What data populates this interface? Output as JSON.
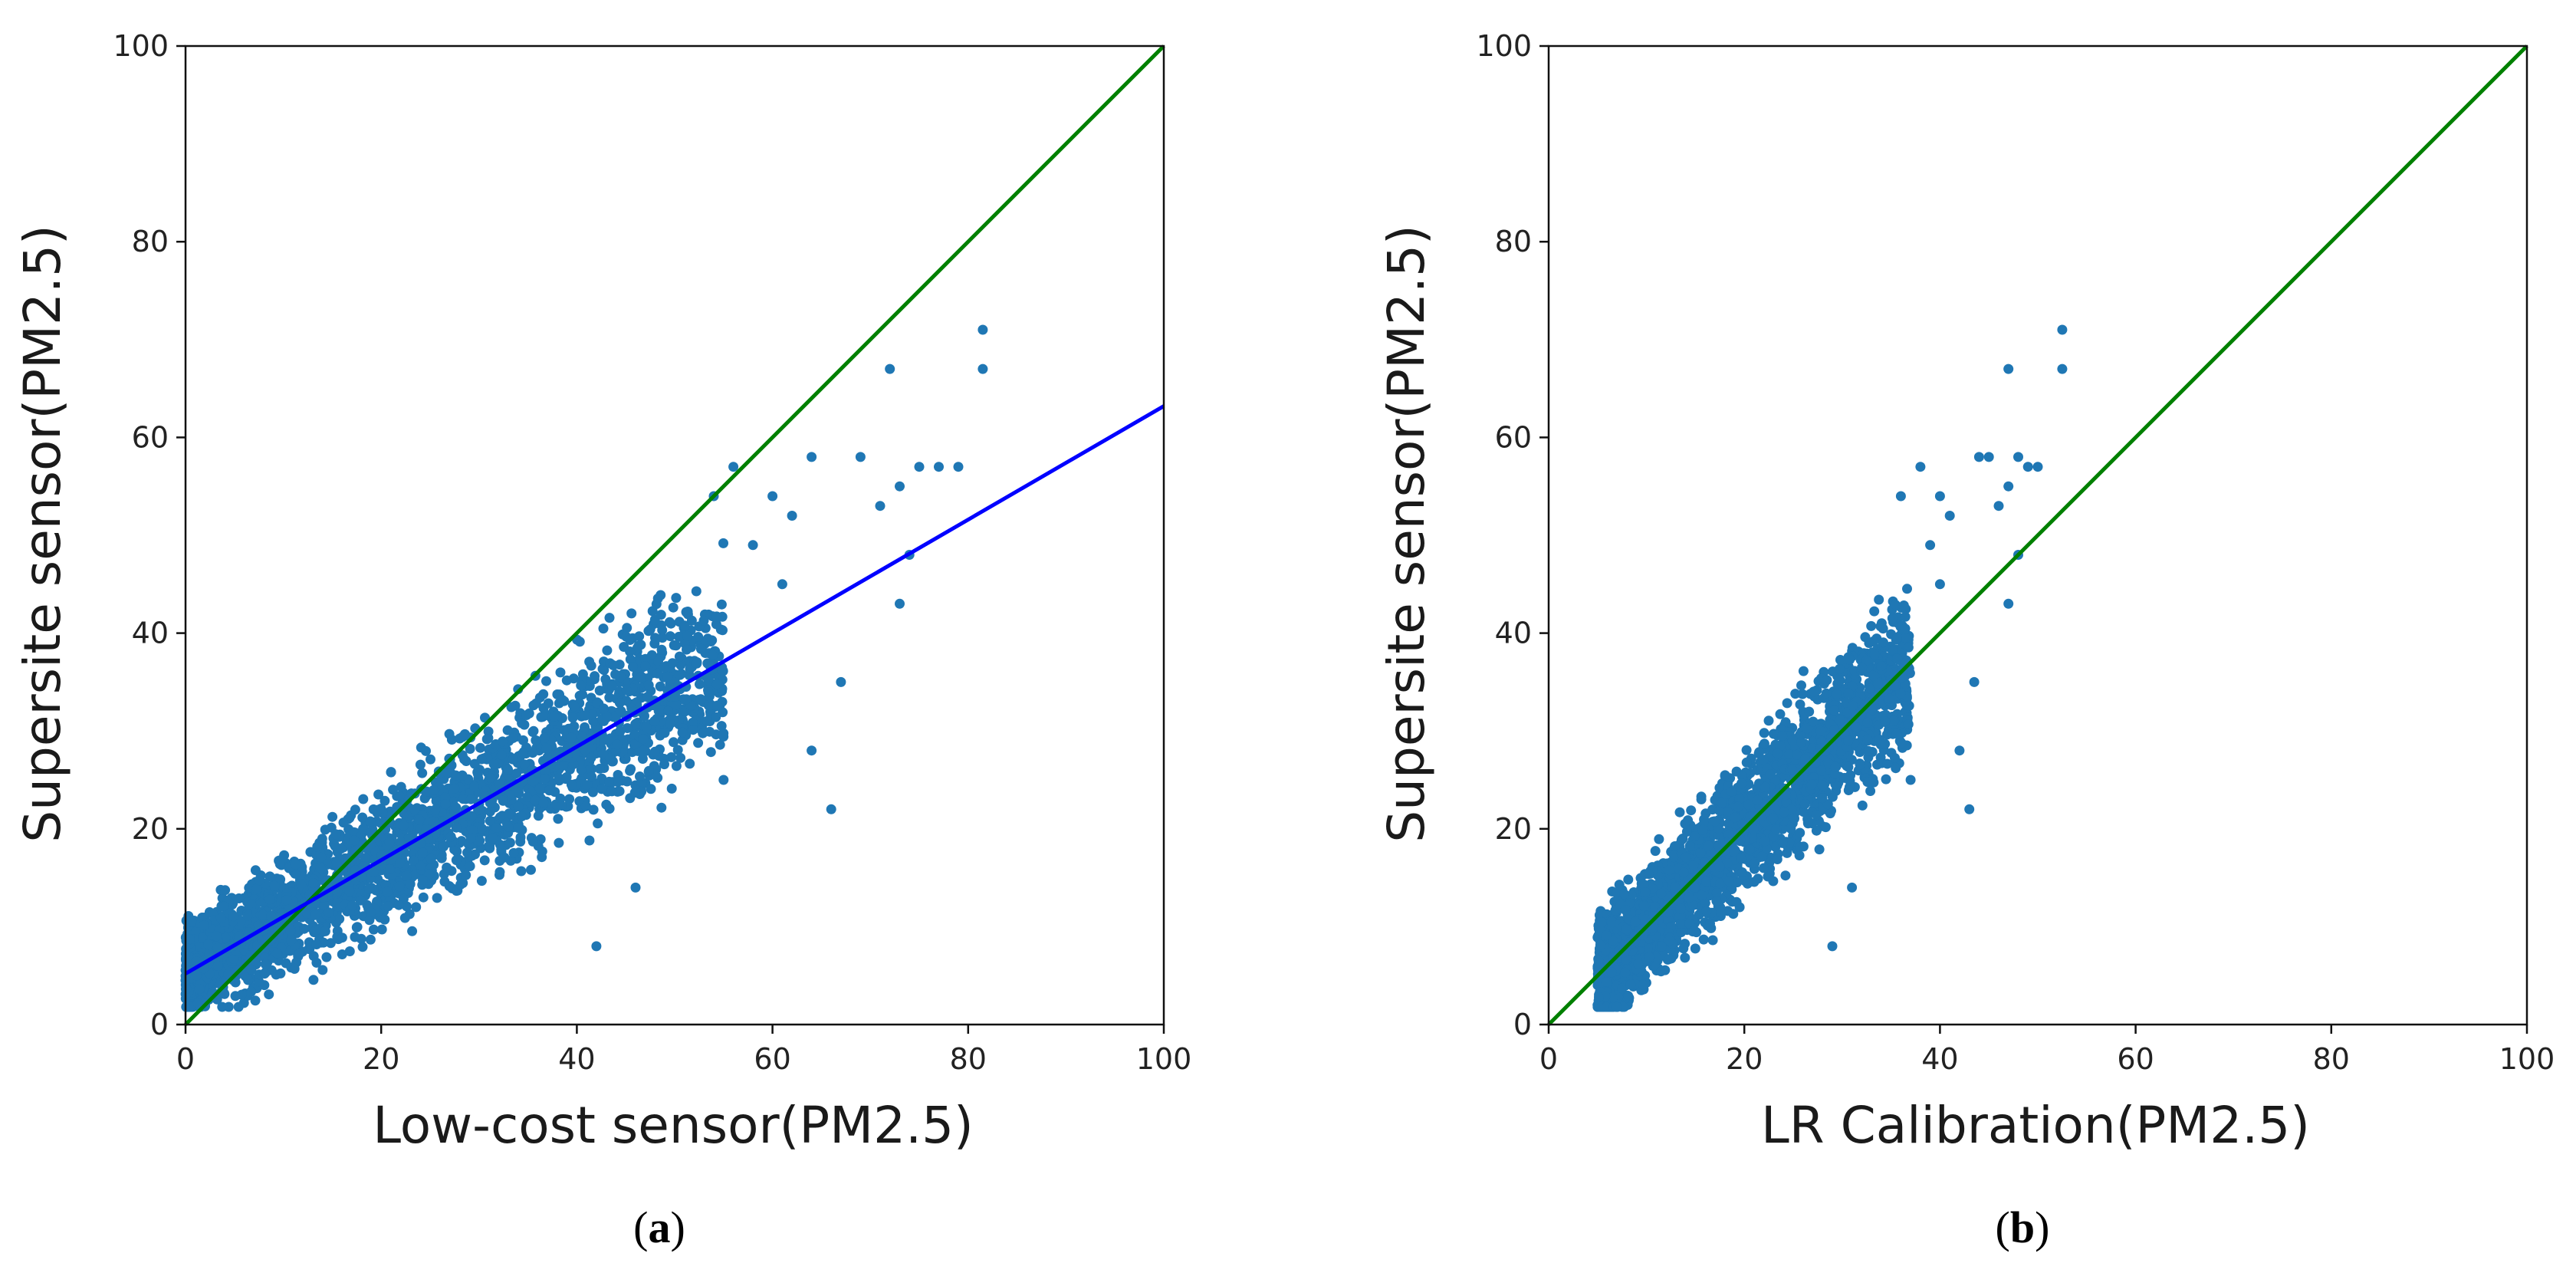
{
  "chart_data": [
    {
      "type": "scatter",
      "panel_label": "a",
      "xlabel": "Low-cost sensor(PM2.5)",
      "ylabel": "Supersite sensor(PM2.5)",
      "xlim": [
        0,
        100
      ],
      "ylim": [
        0,
        100
      ],
      "xticks": [
        "0",
        "20",
        "40",
        "60",
        "80",
        "100"
      ],
      "yticks": [
        "0",
        "20",
        "40",
        "60",
        "80",
        "100"
      ],
      "grid": false,
      "point_color": "#1f77b4",
      "lines": [
        {
          "kind": "identity",
          "color": "#008000",
          "x": [
            0,
            100
          ],
          "y": [
            0,
            100
          ]
        },
        {
          "kind": "linear-fit",
          "color": "#0000ff",
          "x": [
            0,
            100
          ],
          "y": [
            5.2,
            63.2
          ]
        }
      ],
      "scatter_model": {
        "core": {
          "x_range": [
            0,
            55
          ],
          "slope": 0.58,
          "intercept": 5.2,
          "spread": 3.5
        },
        "outliers": [
          [
            81.5,
            71
          ],
          [
            81.5,
            67
          ],
          [
            72,
            67
          ],
          [
            77,
            57
          ],
          [
            75,
            57
          ],
          [
            79,
            57
          ],
          [
            69,
            58
          ],
          [
            64,
            58
          ],
          [
            73,
            55
          ],
          [
            71,
            53
          ],
          [
            74,
            48
          ],
          [
            73,
            43
          ],
          [
            67,
            35
          ],
          [
            64,
            28
          ],
          [
            66,
            22
          ],
          [
            55,
            25
          ],
          [
            42,
            8
          ],
          [
            46,
            14
          ],
          [
            60,
            54
          ],
          [
            62,
            52
          ],
          [
            58,
            49
          ],
          [
            56,
            57
          ],
          [
            54,
            54
          ],
          [
            61,
            45
          ]
        ]
      }
    },
    {
      "type": "scatter",
      "panel_label": "b",
      "xlabel": "LR Calibration(PM2.5)",
      "ylabel": "Supersite sensor(PM2.5)",
      "xlim": [
        0,
        100
      ],
      "ylim": [
        0,
        100
      ],
      "xticks": [
        "0",
        "20",
        "40",
        "60",
        "80",
        "100"
      ],
      "yticks": [
        "0",
        "20",
        "40",
        "60",
        "80",
        "100"
      ],
      "grid": false,
      "point_color": "#1f77b4",
      "lines": [
        {
          "kind": "identity",
          "color": "#008000",
          "x": [
            0,
            100
          ],
          "y": [
            0,
            100
          ]
        }
      ],
      "scatter_model": {
        "core": {
          "x_range": [
            5,
            37
          ],
          "slope": 1.0,
          "intercept": 0,
          "spread": 3.5
        },
        "outliers": [
          [
            52.5,
            71
          ],
          [
            52.5,
            67
          ],
          [
            47,
            67
          ],
          [
            50,
            57
          ],
          [
            48,
            58
          ],
          [
            49,
            57
          ],
          [
            45,
            58
          ],
          [
            44,
            58
          ],
          [
            47,
            55
          ],
          [
            46,
            53
          ],
          [
            48,
            48
          ],
          [
            47,
            43
          ],
          [
            43.5,
            35
          ],
          [
            42,
            28
          ],
          [
            43,
            22
          ],
          [
            37,
            25
          ],
          [
            29,
            8
          ],
          [
            31,
            14
          ],
          [
            40,
            54
          ],
          [
            41,
            52
          ],
          [
            39,
            49
          ],
          [
            38,
            57
          ],
          [
            36,
            54
          ],
          [
            40,
            45
          ]
        ]
      }
    }
  ]
}
